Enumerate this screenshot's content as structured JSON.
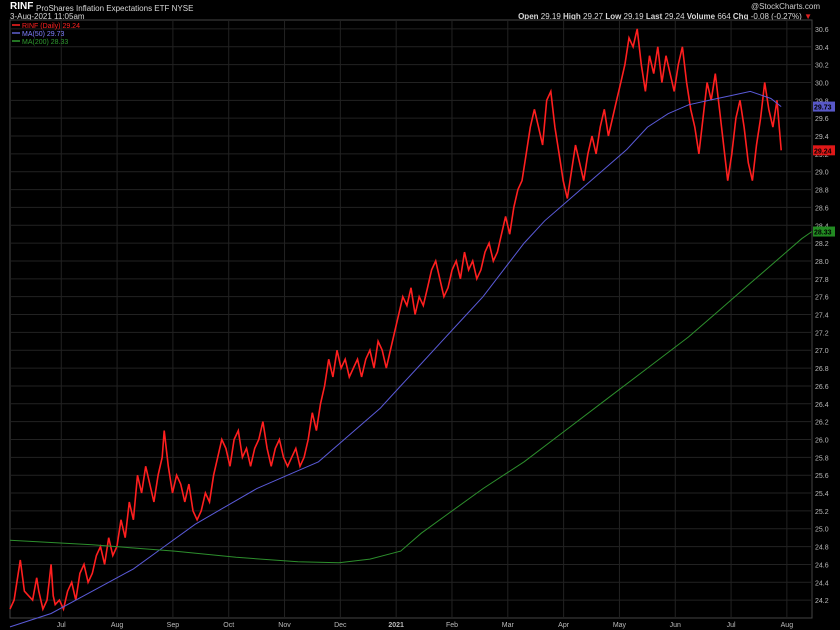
{
  "header": {
    "symbol": "RINF",
    "name": "ProShares Inflation Expectations ETF",
    "exchange": "NYSE",
    "date": "3-Aug-2021 11:05am",
    "watermark": "@StockCharts.com",
    "quote": {
      "open_label": "Open",
      "open": "29.19",
      "high_label": "High",
      "high": "29.27",
      "low_label": "Low",
      "low": "29.19",
      "last_label": "Last",
      "last": "29.24",
      "volume_label": "Volume",
      "volume": "664",
      "chg_label": "Chg",
      "chg": "-0.08 (-0.27%)",
      "chg_arrow": "▼"
    }
  },
  "legend": [
    {
      "label": "RINF (Daily) 29.24",
      "color": "#ff2020",
      "swatch": "#ff2020"
    },
    {
      "label": "MA(50) 29.73",
      "color": "#8080ff",
      "swatch": "#6060d0"
    },
    {
      "label": "MA(200) 28.33",
      "color": "#2f9a2f",
      "swatch": "#2f9a2f"
    }
  ],
  "price_tags": [
    {
      "text": "29.73",
      "value": 29.73,
      "bg": "#5858c8",
      "fg": "#000000"
    },
    {
      "text": "29.24",
      "value": 29.24,
      "bg": "#e01818",
      "fg": "#000000"
    },
    {
      "text": "28.33",
      "value": 28.33,
      "bg": "#228a22",
      "fg": "#000000"
    }
  ],
  "colors": {
    "price": "#ff1f1f",
    "ma50": "#5a5ad8",
    "ma200": "#2d8f2d",
    "grid": "#222222",
    "axis_text": "#bbbbbb"
  },
  "chart_data": {
    "type": "line",
    "ylim": [
      24.0,
      30.7
    ],
    "y_ticks": [
      "24.2",
      "24.4",
      "24.6",
      "24.8",
      "25.0",
      "25.2",
      "25.4",
      "25.6",
      "25.8",
      "26.0",
      "26.2",
      "26.4",
      "26.6",
      "26.8",
      "27.0",
      "27.2",
      "27.4",
      "27.6",
      "27.8",
      "28.0",
      "28.2",
      "28.4",
      "28.6",
      "28.8",
      "29.0",
      "29.2",
      "29.4",
      "29.6",
      "29.8",
      "30.0",
      "30.2",
      "30.4",
      "30.6"
    ],
    "x_ticks": [
      "Jul",
      "Aug",
      "Sep",
      "Oct",
      "Nov",
      "Dec",
      "2021",
      "Feb",
      "Mar",
      "Apr",
      "May",
      "Jun",
      "Jul",
      "Aug"
    ],
    "series": [
      {
        "name": "RINF (Daily)",
        "points": [
          [
            0,
            24.1
          ],
          [
            2,
            24.2
          ],
          [
            5,
            24.65
          ],
          [
            7,
            24.3
          ],
          [
            9,
            24.25
          ],
          [
            11,
            24.2
          ],
          [
            13,
            24.45
          ],
          [
            14,
            24.3
          ],
          [
            16,
            24.1
          ],
          [
            18,
            24.2
          ],
          [
            19,
            24.4
          ],
          [
            20,
            24.6
          ],
          [
            21,
            24.25
          ],
          [
            22,
            24.15
          ],
          [
            24,
            24.2
          ],
          [
            26,
            24.1
          ],
          [
            28,
            24.3
          ],
          [
            30,
            24.4
          ],
          [
            32,
            24.2
          ],
          [
            34,
            24.5
          ],
          [
            36,
            24.6
          ],
          [
            38,
            24.4
          ],
          [
            40,
            24.5
          ],
          [
            42,
            24.7
          ],
          [
            44,
            24.8
          ],
          [
            46,
            24.6
          ],
          [
            48,
            24.9
          ],
          [
            50,
            24.7
          ],
          [
            52,
            24.8
          ],
          [
            54,
            25.1
          ],
          [
            56,
            24.9
          ],
          [
            58,
            25.3
          ],
          [
            60,
            25.1
          ],
          [
            62,
            25.6
          ],
          [
            64,
            25.4
          ],
          [
            66,
            25.7
          ],
          [
            68,
            25.5
          ],
          [
            70,
            25.3
          ],
          [
            72,
            25.6
          ],
          [
            74,
            25.8
          ],
          [
            75,
            26.1
          ],
          [
            77,
            25.7
          ],
          [
            79,
            25.4
          ],
          [
            81,
            25.6
          ],
          [
            83,
            25.5
          ],
          [
            85,
            25.3
          ],
          [
            87,
            25.5
          ],
          [
            89,
            25.2
          ],
          [
            91,
            25.1
          ],
          [
            93,
            25.2
          ],
          [
            95,
            25.4
          ],
          [
            97,
            25.3
          ],
          [
            99,
            25.6
          ],
          [
            101,
            25.8
          ],
          [
            103,
            26.0
          ],
          [
            105,
            25.9
          ],
          [
            107,
            25.7
          ],
          [
            109,
            26.0
          ],
          [
            111,
            26.1
          ],
          [
            113,
            25.8
          ],
          [
            115,
            25.9
          ],
          [
            117,
            25.7
          ],
          [
            119,
            25.9
          ],
          [
            121,
            26.0
          ],
          [
            123,
            26.2
          ],
          [
            125,
            25.9
          ],
          [
            127,
            25.7
          ],
          [
            129,
            25.9
          ],
          [
            131,
            26.0
          ],
          [
            133,
            25.8
          ],
          [
            135,
            25.7
          ],
          [
            137,
            25.8
          ],
          [
            139,
            25.9
          ],
          [
            141,
            25.7
          ],
          [
            143,
            25.8
          ],
          [
            145,
            26.0
          ],
          [
            147,
            26.3
          ],
          [
            149,
            26.1
          ],
          [
            151,
            26.4
          ],
          [
            153,
            26.6
          ],
          [
            155,
            26.9
          ],
          [
            157,
            26.7
          ],
          [
            159,
            27.0
          ],
          [
            161,
            26.8
          ],
          [
            163,
            26.9
          ],
          [
            165,
            26.7
          ],
          [
            167,
            26.8
          ],
          [
            169,
            26.9
          ],
          [
            171,
            26.7
          ],
          [
            173,
            26.9
          ],
          [
            175,
            27.0
          ],
          [
            177,
            26.8
          ],
          [
            179,
            27.1
          ],
          [
            181,
            27.0
          ],
          [
            183,
            26.8
          ],
          [
            185,
            27.0
          ],
          [
            187,
            27.2
          ],
          [
            189,
            27.4
          ],
          [
            191,
            27.6
          ],
          [
            193,
            27.5
          ],
          [
            195,
            27.7
          ],
          [
            197,
            27.4
          ],
          [
            199,
            27.6
          ],
          [
            201,
            27.5
          ],
          [
            203,
            27.7
          ],
          [
            205,
            27.9
          ],
          [
            207,
            28.0
          ],
          [
            209,
            27.8
          ],
          [
            211,
            27.6
          ],
          [
            213,
            27.7
          ],
          [
            215,
            27.9
          ],
          [
            217,
            28.0
          ],
          [
            219,
            27.8
          ],
          [
            221,
            28.1
          ],
          [
            223,
            27.9
          ],
          [
            225,
            28.0
          ],
          [
            227,
            27.8
          ],
          [
            229,
            27.9
          ],
          [
            231,
            28.1
          ],
          [
            233,
            28.2
          ],
          [
            235,
            28.0
          ],
          [
            237,
            28.1
          ],
          [
            239,
            28.3
          ],
          [
            241,
            28.5
          ],
          [
            243,
            28.3
          ],
          [
            245,
            28.6
          ],
          [
            247,
            28.8
          ],
          [
            249,
            28.9
          ],
          [
            251,
            29.2
          ],
          [
            253,
            29.5
          ],
          [
            255,
            29.7
          ],
          [
            257,
            29.5
          ],
          [
            259,
            29.3
          ],
          [
            261,
            29.8
          ],
          [
            263,
            29.9
          ],
          [
            265,
            29.5
          ],
          [
            267,
            29.2
          ],
          [
            269,
            28.9
          ],
          [
            271,
            28.7
          ],
          [
            273,
            29.0
          ],
          [
            275,
            29.3
          ],
          [
            277,
            29.1
          ],
          [
            279,
            28.9
          ],
          [
            281,
            29.2
          ],
          [
            283,
            29.4
          ],
          [
            285,
            29.2
          ],
          [
            287,
            29.5
          ],
          [
            289,
            29.7
          ],
          [
            291,
            29.4
          ],
          [
            293,
            29.6
          ],
          [
            295,
            29.8
          ],
          [
            297,
            30.0
          ],
          [
            299,
            30.2
          ],
          [
            301,
            30.5
          ],
          [
            303,
            30.4
          ],
          [
            305,
            30.6
          ],
          [
            307,
            30.2
          ],
          [
            309,
            29.9
          ],
          [
            311,
            30.3
          ],
          [
            313,
            30.1
          ],
          [
            315,
            30.4
          ],
          [
            317,
            30.0
          ],
          [
            319,
            30.3
          ],
          [
            321,
            30.1
          ],
          [
            323,
            29.9
          ],
          [
            325,
            30.2
          ],
          [
            327,
            30.4
          ],
          [
            329,
            30.0
          ],
          [
            331,
            29.7
          ],
          [
            333,
            29.5
          ],
          [
            335,
            29.2
          ],
          [
            337,
            29.6
          ],
          [
            339,
            30.0
          ],
          [
            341,
            29.8
          ],
          [
            343,
            30.1
          ],
          [
            345,
            29.7
          ],
          [
            347,
            29.3
          ],
          [
            349,
            28.9
          ],
          [
            351,
            29.2
          ],
          [
            353,
            29.6
          ],
          [
            355,
            29.8
          ],
          [
            357,
            29.5
          ],
          [
            359,
            29.1
          ],
          [
            361,
            28.9
          ],
          [
            363,
            29.3
          ],
          [
            365,
            29.6
          ],
          [
            367,
            30.0
          ],
          [
            369,
            29.7
          ],
          [
            371,
            29.5
          ],
          [
            373,
            29.8
          ],
          [
            375,
            29.24
          ]
        ]
      },
      {
        "name": "MA(50)",
        "points": [
          [
            0,
            23.9
          ],
          [
            20,
            24.05
          ],
          [
            40,
            24.3
          ],
          [
            60,
            24.55
          ],
          [
            75,
            24.8
          ],
          [
            90,
            25.05
          ],
          [
            105,
            25.25
          ],
          [
            120,
            25.45
          ],
          [
            135,
            25.6
          ],
          [
            150,
            25.75
          ],
          [
            160,
            25.95
          ],
          [
            170,
            26.15
          ],
          [
            180,
            26.35
          ],
          [
            190,
            26.6
          ],
          [
            200,
            26.85
          ],
          [
            210,
            27.1
          ],
          [
            220,
            27.35
          ],
          [
            230,
            27.6
          ],
          [
            240,
            27.9
          ],
          [
            250,
            28.2
          ],
          [
            260,
            28.45
          ],
          [
            270,
            28.65
          ],
          [
            280,
            28.85
          ],
          [
            290,
            29.05
          ],
          [
            300,
            29.25
          ],
          [
            310,
            29.5
          ],
          [
            320,
            29.65
          ],
          [
            330,
            29.75
          ],
          [
            340,
            29.8
          ],
          [
            350,
            29.85
          ],
          [
            360,
            29.9
          ],
          [
            370,
            29.82
          ],
          [
            375,
            29.73
          ]
        ]
      },
      {
        "name": "MA(200)",
        "points": [
          [
            0,
            24.87
          ],
          [
            40,
            24.82
          ],
          [
            80,
            24.75
          ],
          [
            110,
            24.68
          ],
          [
            140,
            24.63
          ],
          [
            160,
            24.62
          ],
          [
            175,
            24.66
          ],
          [
            190,
            24.75
          ],
          [
            200,
            24.95
          ],
          [
            215,
            25.2
          ],
          [
            230,
            25.45
          ],
          [
            250,
            25.75
          ],
          [
            270,
            26.1
          ],
          [
            290,
            26.45
          ],
          [
            310,
            26.8
          ],
          [
            330,
            27.15
          ],
          [
            345,
            27.45
          ],
          [
            360,
            27.75
          ],
          [
            375,
            28.05
          ],
          [
            385,
            28.25
          ],
          [
            390,
            28.33
          ]
        ]
      }
    ]
  }
}
